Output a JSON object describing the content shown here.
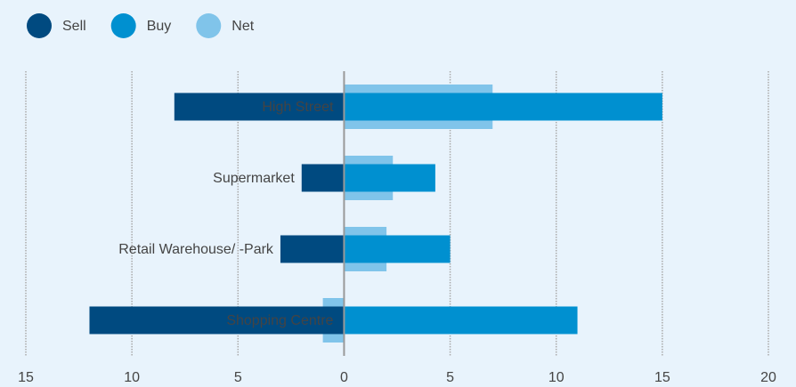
{
  "chart_data": {
    "type": "bar",
    "orientation": "horizontal",
    "legend": "top-left",
    "grid": true,
    "categories": [
      "High Street",
      "Supermarket",
      "Retail Warehouse/ -Park",
      "Shopping Centre"
    ],
    "series": [
      {
        "name": "Sell",
        "color": "#004a80",
        "values": [
          -8,
          -2,
          -3,
          -12
        ]
      },
      {
        "name": "Buy",
        "color": "#0090d0",
        "values": [
          15,
          4.3,
          5,
          11
        ]
      },
      {
        "name": "Net",
        "color": "#80c4ea",
        "values": [
          7,
          2.3,
          2,
          -1
        ]
      }
    ],
    "xlim": [
      -15,
      20
    ],
    "xticks": [
      {
        "value": -15,
        "label": "15"
      },
      {
        "value": -10,
        "label": "10"
      },
      {
        "value": -5,
        "label": "5"
      },
      0,
      5,
      10,
      15,
      20
    ]
  }
}
